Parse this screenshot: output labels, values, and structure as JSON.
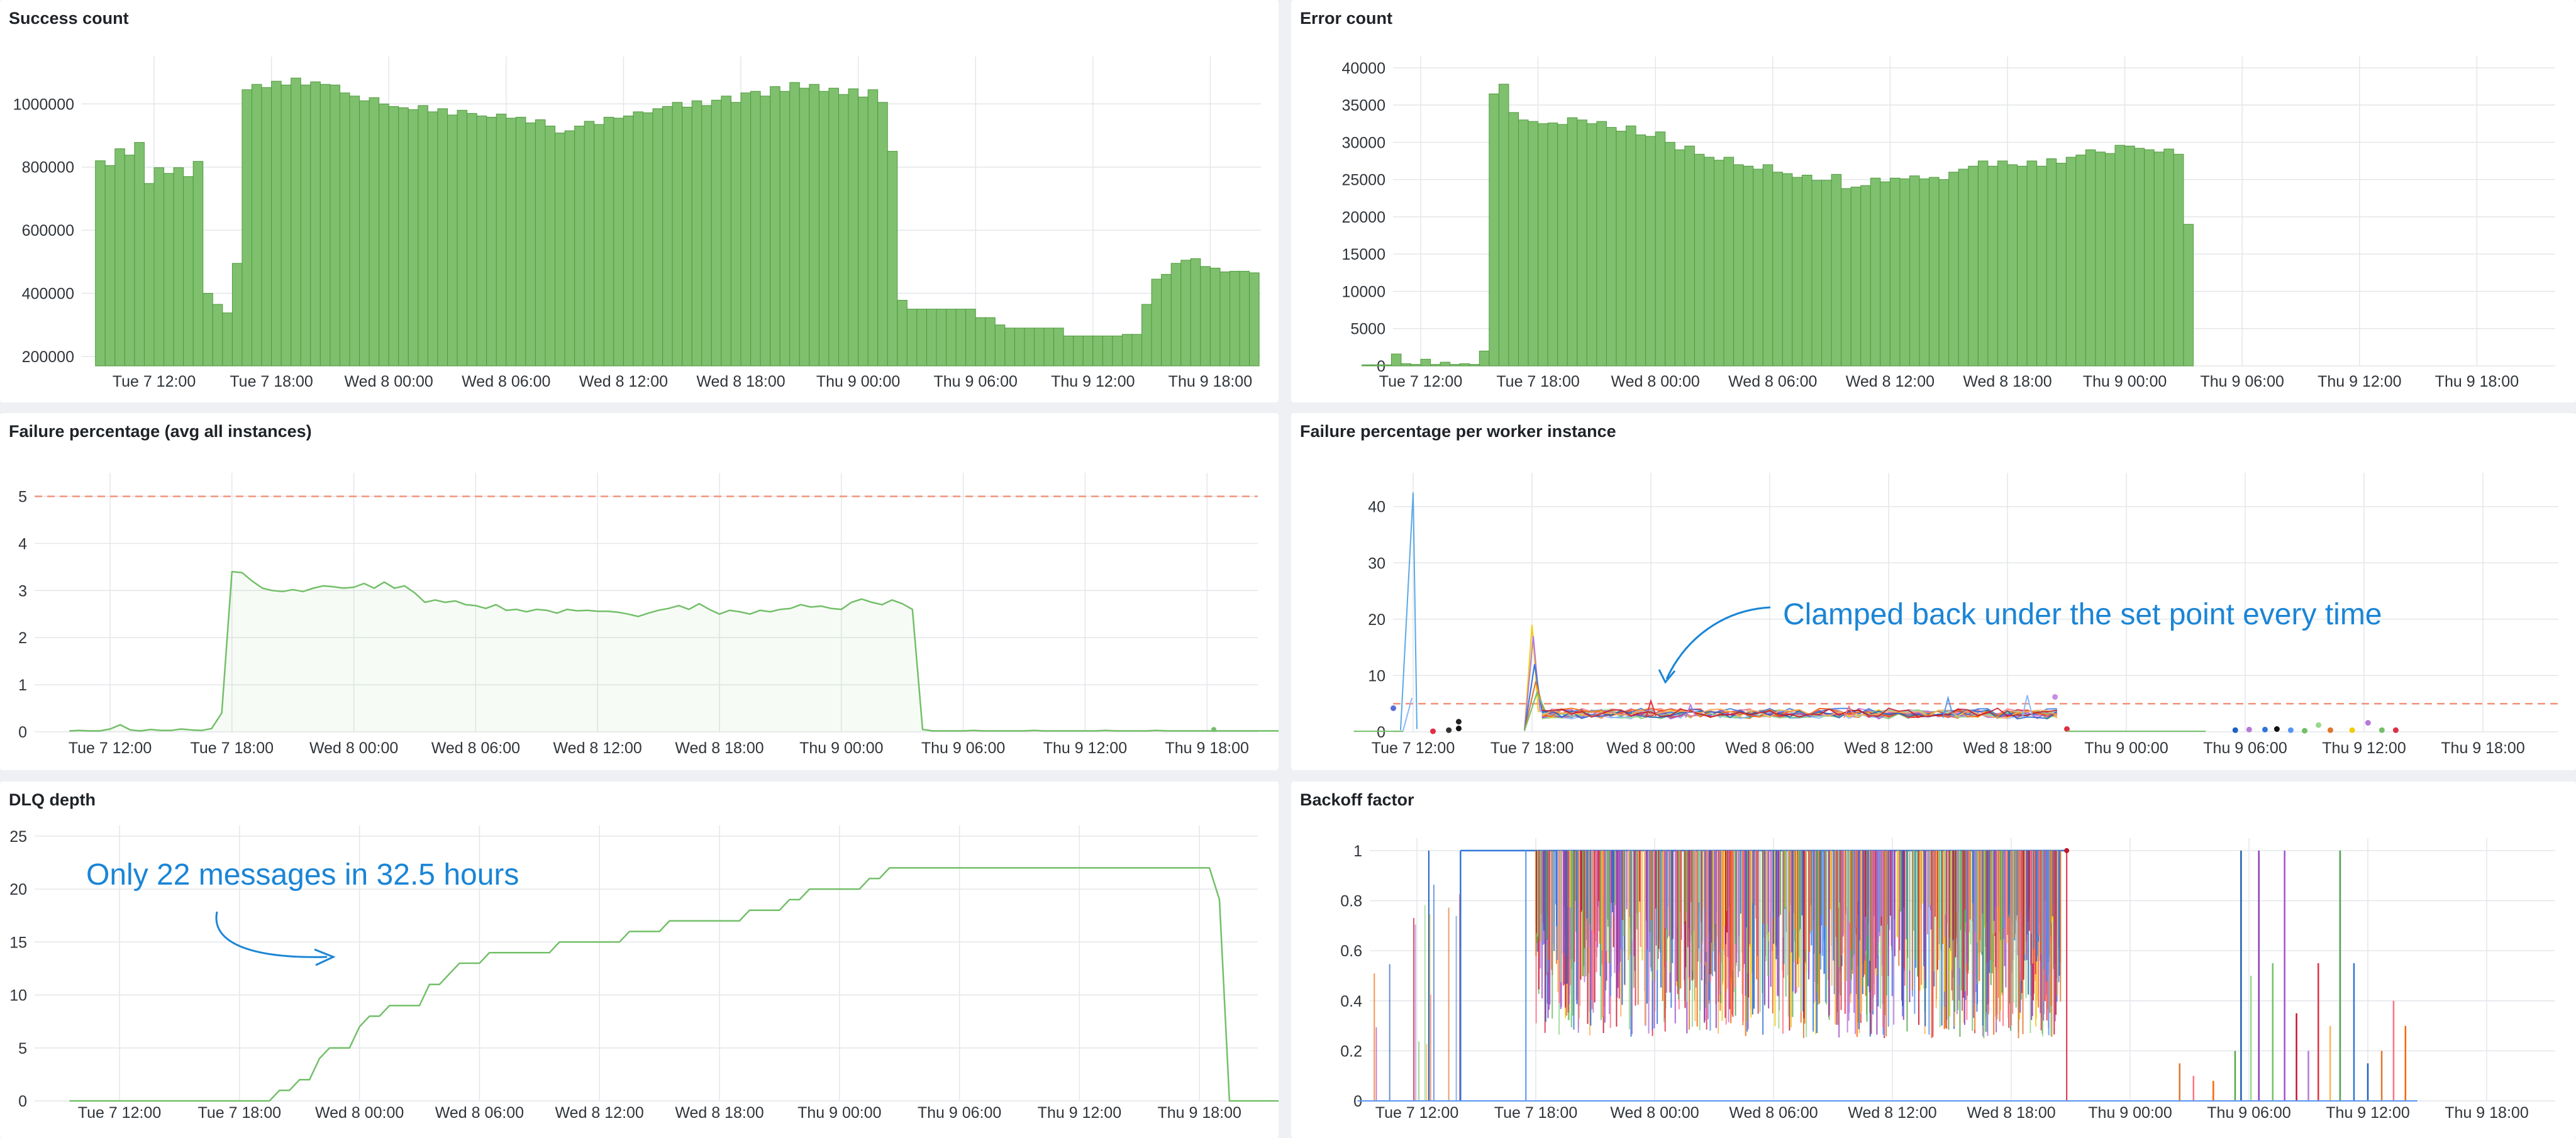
{
  "dashboard": {
    "panels": [
      {
        "id": "success",
        "title": "Success count"
      },
      {
        "id": "errors",
        "title": "Error count"
      },
      {
        "id": "failavg",
        "title": "Failure percentage (avg all instances)"
      },
      {
        "id": "failper",
        "title": "Failure percentage per worker instance",
        "annotation": "Clamped back under the set point every time"
      },
      {
        "id": "dlq",
        "title": "DLQ depth",
        "annotation": "Only 22 messages in 32.5 hours"
      },
      {
        "id": "backoff",
        "title": "Backoff factor"
      }
    ]
  },
  "colors": {
    "bar_fill": "#7fc06e",
    "bar_stroke": "#4e9a3c",
    "line": "#73bf69",
    "threshold": "#f2937a",
    "annotation": "#1a85d6"
  },
  "chart_data": [
    {
      "panel": "success",
      "type": "bar",
      "x_ticks": [
        "Tue 7 12:00",
        "Tue 7 18:00",
        "Wed 8 00:00",
        "Wed 8 06:00",
        "Wed 8 12:00",
        "Wed 8 18:00",
        "Thu 9 00:00",
        "Thu 9 06:00",
        "Thu 9 12:00",
        "Thu 9 18:00"
      ],
      "y_ticks": [
        200000,
        400000,
        600000,
        800000,
        1000000
      ],
      "ylim": [
        170000,
        1150000
      ],
      "x_start_hours": -3.0,
      "bin_hours": 0.5,
      "values": [
        820000,
        805000,
        858000,
        838000,
        878000,
        748000,
        798000,
        780000,
        798000,
        770000,
        818000,
        400000,
        365000,
        338000,
        495000,
        1045000,
        1062000,
        1052000,
        1072000,
        1060000,
        1082000,
        1060000,
        1070000,
        1062000,
        1060000,
        1035000,
        1025000,
        1010000,
        1020000,
        1000000,
        992000,
        988000,
        982000,
        995000,
        975000,
        985000,
        965000,
        980000,
        970000,
        962000,
        958000,
        968000,
        955000,
        958000,
        940000,
        950000,
        930000,
        908000,
        915000,
        930000,
        945000,
        935000,
        958000,
        955000,
        962000,
        975000,
        972000,
        985000,
        992000,
        1005000,
        990000,
        1010000,
        995000,
        1012000,
        1025000,
        1005000,
        1035000,
        1040000,
        1025000,
        1055000,
        1040000,
        1068000,
        1050000,
        1062000,
        1040000,
        1050000,
        1030000,
        1048000,
        1022000,
        1045000,
        1005000,
        850000,
        378000,
        350000,
        350000,
        350000,
        350000,
        350000,
        350000,
        350000,
        323000,
        323000,
        300000,
        290000,
        290000,
        290000,
        290000,
        290000,
        290000,
        265000,
        265000,
        265000,
        265000,
        265000,
        265000,
        270000,
        270000,
        365000,
        445000,
        460000,
        495000,
        505000,
        510000,
        485000,
        480000,
        468000,
        470000,
        470000,
        465000,
        470000,
        470000,
        468000,
        470000,
        465000,
        470000,
        478000,
        470000,
        462000,
        460000,
        465000,
        462000,
        455000
      ]
    },
    {
      "panel": "errors",
      "type": "bar",
      "x_ticks": [
        "Tue 7 12:00",
        "Tue 7 18:00",
        "Wed 8 00:00",
        "Wed 8 06:00",
        "Wed 8 12:00",
        "Wed 8 18:00",
        "Thu 9 00:00",
        "Thu 9 06:00",
        "Thu 9 12:00",
        "Thu 9 18:00"
      ],
      "y_ticks": [
        0,
        5000,
        10000,
        15000,
        20000,
        25000,
        30000,
        35000,
        40000
      ],
      "ylim": [
        0,
        41500
      ],
      "x_start_hours": -3.0,
      "bin_hours": 0.5,
      "values": [
        150,
        150,
        150,
        1600,
        300,
        200,
        900,
        200,
        500,
        200,
        300,
        200,
        2000,
        36500,
        37800,
        34000,
        33000,
        32800,
        32500,
        32600,
        32400,
        33300,
        33000,
        32500,
        32800,
        32000,
        31500,
        32200,
        31000,
        30800,
        31400,
        30000,
        29000,
        29500,
        28400,
        28000,
        27600,
        28000,
        27000,
        26800,
        26400,
        27000,
        26000,
        25800,
        25300,
        25600,
        24900,
        24900,
        25700,
        23800,
        24000,
        24200,
        25200,
        24700,
        25200,
        25100,
        25500,
        25100,
        25300,
        25000,
        26000,
        26400,
        26800,
        27500,
        26800,
        27500,
        27000,
        26800,
        27500,
        26800,
        27800,
        27200,
        28000,
        28300,
        29000,
        28700,
        28500,
        29600,
        29500,
        29200,
        29000,
        28700,
        29100,
        28400,
        19000,
        0,
        0,
        0,
        0,
        0,
        0,
        0,
        0,
        0,
        0,
        0,
        0,
        0,
        0,
        0,
        0,
        0,
        0,
        0,
        0,
        0,
        0,
        0,
        0,
        0,
        0,
        0,
        0,
        0,
        0,
        0,
        0,
        0,
        0,
        0,
        0,
        0,
        0,
        0,
        0,
        0,
        0,
        0,
        0,
        0,
        0,
        0,
        0,
        0,
        0
      ]
    },
    {
      "panel": "failavg",
      "type": "line",
      "x_ticks": [
        "Tue 7 12:00",
        "Tue 7 18:00",
        "Wed 8 00:00",
        "Wed 8 06:00",
        "Wed 8 12:00",
        "Wed 8 18:00",
        "Thu 9 00:00",
        "Thu 9 06:00",
        "Thu 9 12:00",
        "Thu 9 18:00"
      ],
      "y_ticks": [
        0,
        1,
        2,
        3,
        4,
        5
      ],
      "ylim": [
        0,
        5.5
      ],
      "threshold": 5,
      "x_start_hours": -2.0,
      "step_hours": 0.5,
      "values": [
        0.02,
        0.03,
        0.02,
        0.02,
        0.06,
        0.15,
        0.04,
        0.02,
        0.05,
        0.03,
        0.03,
        0.06,
        0.04,
        0.03,
        0.07,
        0.4,
        3.4,
        3.38,
        3.2,
        3.05,
        3.0,
        2.98,
        3.02,
        2.98,
        3.05,
        3.1,
        3.08,
        3.05,
        3.07,
        3.15,
        3.05,
        3.18,
        3.05,
        3.1,
        2.95,
        2.75,
        2.8,
        2.75,
        2.78,
        2.7,
        2.68,
        2.62,
        2.7,
        2.58,
        2.6,
        2.55,
        2.6,
        2.58,
        2.52,
        2.6,
        2.57,
        2.58,
        2.56,
        2.56,
        2.54,
        2.5,
        2.45,
        2.52,
        2.58,
        2.62,
        2.68,
        2.6,
        2.72,
        2.6,
        2.5,
        2.58,
        2.55,
        2.5,
        2.58,
        2.55,
        2.6,
        2.62,
        2.7,
        2.65,
        2.67,
        2.62,
        2.6,
        2.75,
        2.82,
        2.75,
        2.7,
        2.8,
        2.72,
        2.6,
        0.05,
        0.02,
        0.02,
        0.02,
        0.02,
        0.03,
        0.02,
        0.02,
        0.02,
        0.02,
        0.02,
        0.03,
        0.02,
        0.02,
        0.02,
        0.02,
        0.02,
        0.02,
        0.03,
        0.02,
        0.02,
        0.02,
        0.02,
        0.03,
        0.02,
        0.02,
        0.02,
        0.02,
        0.02,
        0.02,
        0.02,
        0.02,
        0.02,
        0.02,
        0.02,
        0.02,
        0.02,
        0.02,
        0.02,
        0.02
      ]
    },
    {
      "panel": "failper",
      "type": "line",
      "x_ticks": [
        "Tue 7 12:00",
        "Tue 7 18:00",
        "Wed 8 00:00",
        "Wed 8 06:00",
        "Wed 8 12:00",
        "Wed 8 18:00",
        "Thu 9 00:00",
        "Thu 9 06:00",
        "Thu 9 12:00",
        "Thu 9 18:00"
      ],
      "y_ticks": [
        0,
        10,
        20,
        30,
        40
      ],
      "ylim": [
        0,
        46
      ],
      "threshold": 5,
      "spike_hours": 0.0,
      "spike_value": 42.5
    },
    {
      "panel": "dlq",
      "type": "line",
      "x_ticks": [
        "Tue 7 12:00",
        "Tue 7 18:00",
        "Wed 8 00:00",
        "Wed 8 06:00",
        "Wed 8 12:00",
        "Wed 8 18:00",
        "Thu 9 00:00",
        "Thu 9 06:00",
        "Thu 9 12:00",
        "Thu 9 18:00"
      ],
      "y_ticks": [
        0,
        5,
        10,
        15,
        20,
        25
      ],
      "ylim": [
        0,
        26
      ],
      "x_start_hours": -2.5,
      "step_hours": 0.5,
      "values": [
        0,
        0,
        0,
        0,
        0,
        0,
        0,
        0,
        0,
        0,
        0,
        0,
        0,
        0,
        0,
        0,
        0,
        0,
        0,
        0,
        0,
        1,
        1,
        2,
        2,
        4,
        5,
        5,
        5,
        7,
        8,
        8,
        9,
        9,
        9,
        9,
        11,
        11,
        12,
        13,
        13,
        13,
        14,
        14,
        14,
        14,
        14,
        14,
        14,
        15,
        15,
        15,
        15,
        15,
        15,
        15,
        16,
        16,
        16,
        16,
        17,
        17,
        17,
        17,
        17,
        17,
        17,
        17,
        18,
        18,
        18,
        18,
        19,
        19,
        20,
        20,
        20,
        20,
        20,
        20,
        21,
        21,
        22,
        22,
        22,
        22,
        22,
        22,
        22,
        22,
        22,
        22,
        22,
        22,
        22,
        22,
        22,
        22,
        22,
        22,
        22,
        22,
        22,
        22,
        22,
        22,
        22,
        22,
        22,
        22,
        22,
        22,
        22,
        22,
        22,
        19,
        0,
        0,
        0,
        0,
        0,
        0,
        0,
        0,
        0,
        0,
        0,
        0,
        0,
        0,
        0,
        0,
        0,
        0,
        0,
        0,
        0
      ]
    },
    {
      "panel": "backoff",
      "type": "line",
      "x_ticks": [
        "Tue 7 12:00",
        "Tue 7 18:00",
        "Wed 8 00:00",
        "Wed 8 06:00",
        "Wed 8 12:00",
        "Wed 8 18:00",
        "Thu 9 00:00",
        "Thu 9 06:00",
        "Thu 9 12:00",
        "Thu 9 18:00"
      ],
      "y_ticks": [
        0,
        0.2,
        0.4,
        0.6,
        0.8,
        1
      ],
      "ylim": [
        0,
        1.05
      ]
    }
  ]
}
